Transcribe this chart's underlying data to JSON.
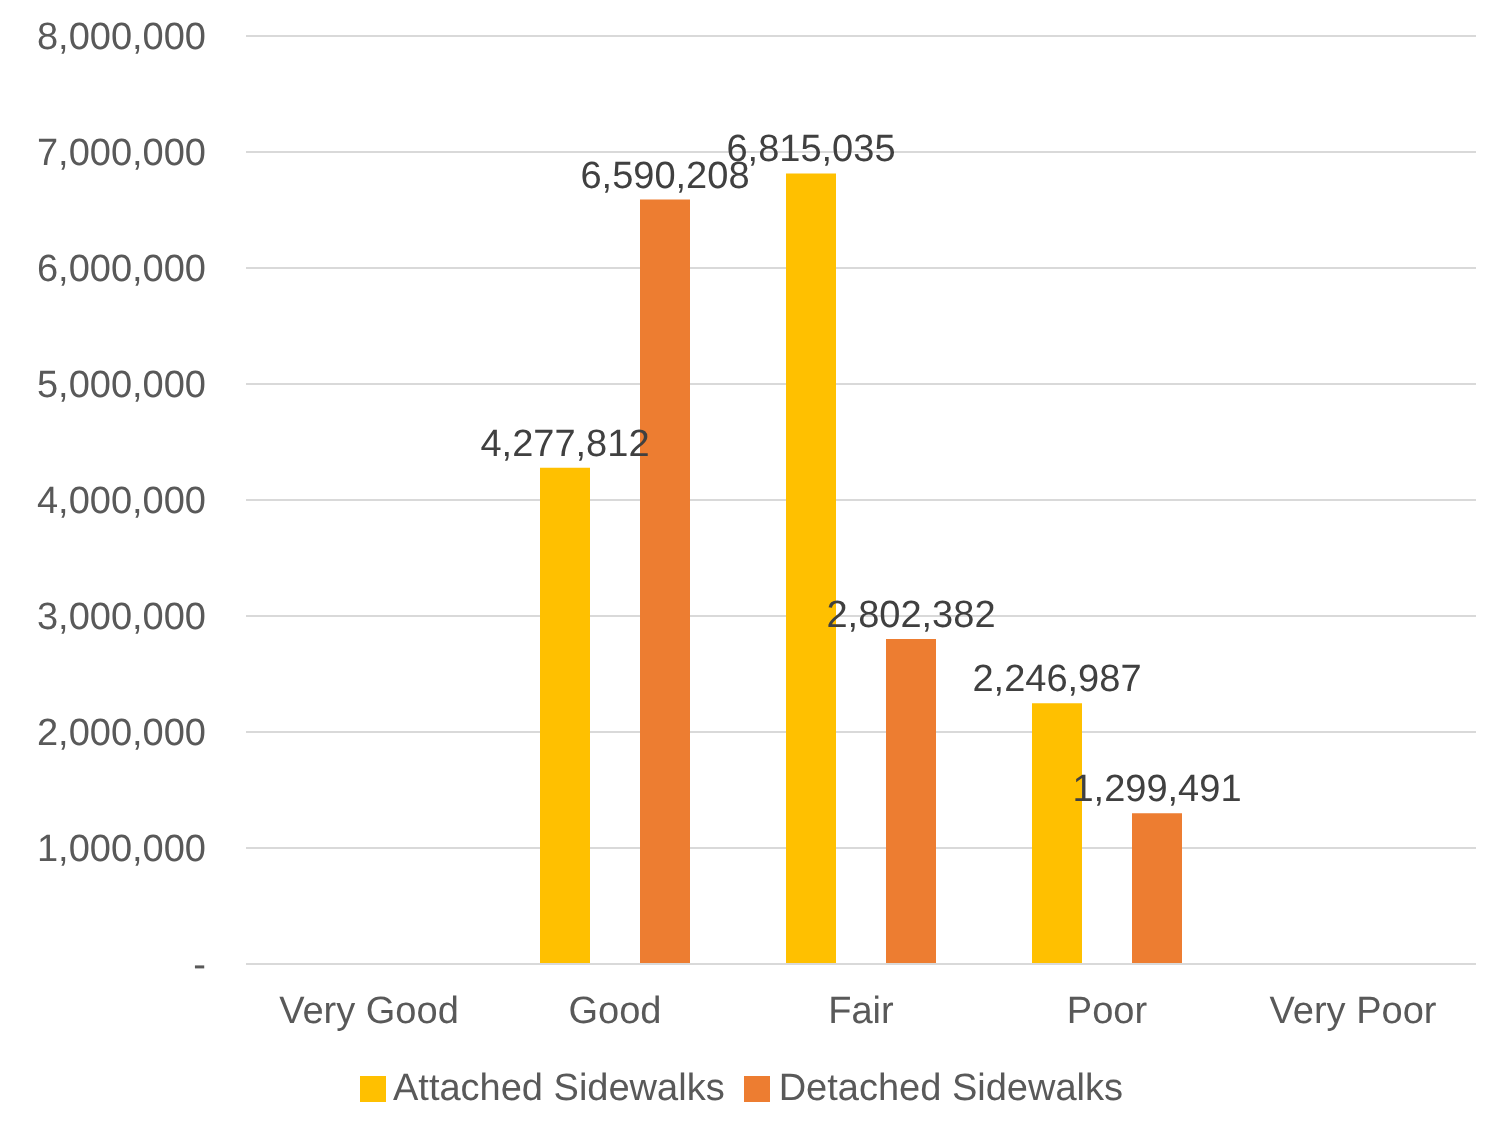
{
  "chart_data": {
    "type": "bar",
    "categories": [
      "Very Good",
      "Good",
      "Fair",
      "Poor",
      "Very Poor"
    ],
    "series": [
      {
        "name": "Attached Sidewalks",
        "color": "#ffc000",
        "values": [
          null,
          4277812,
          6815035,
          2246987,
          null
        ],
        "value_labels": [
          null,
          "4,277,812",
          "6,815,035",
          "2,246,987",
          null
        ]
      },
      {
        "name": "Detached Sidewalks",
        "color": "#ed7d31",
        "values": [
          null,
          6590208,
          2802382,
          1299491,
          null
        ],
        "value_labels": [
          null,
          "6,590,208",
          "2,802,382",
          "1,299,491",
          null
        ]
      }
    ],
    "ylim": [
      0,
      8000000
    ],
    "yticks": [
      {
        "value": 0,
        "label": "-"
      },
      {
        "value": 1000000,
        "label": "1,000,000"
      },
      {
        "value": 2000000,
        "label": "2,000,000"
      },
      {
        "value": 3000000,
        "label": "3,000,000"
      },
      {
        "value": 4000000,
        "label": "4,000,000"
      },
      {
        "value": 5000000,
        "label": "5,000,000"
      },
      {
        "value": 6000000,
        "label": "6,000,000"
      },
      {
        "value": 7000000,
        "label": "7,000,000"
      },
      {
        "value": 8000000,
        "label": "8,000,000"
      }
    ],
    "grid": "y",
    "legend": "bottom"
  }
}
